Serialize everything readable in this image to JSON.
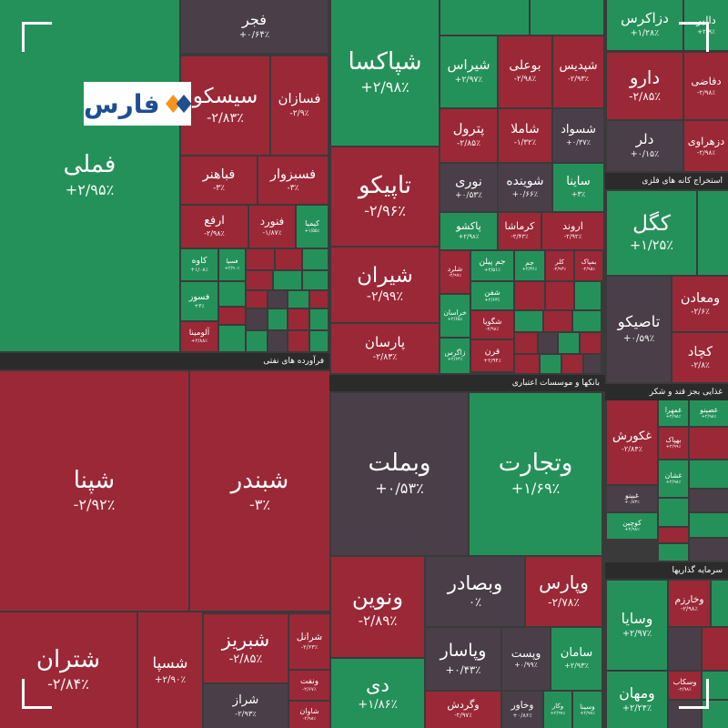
{
  "logo": "فارس",
  "sectors": [
    "فرآورده های نفتی",
    "بانکها و موسسات اعتباری",
    "استخراج کانه های فلزی",
    "غذایی بجز قند و شکر",
    "سرمایه گذاریها"
  ],
  "tiles": [
    {
      "name": "فملی",
      "change": "+۲/۹۵٪"
    },
    {
      "name": "شپنا",
      "change": "-۲/۹۲٪"
    },
    {
      "name": "شبندر",
      "change": "-۳٪"
    },
    {
      "name": "شتران",
      "change": "-۲/۸۴٪"
    },
    {
      "name": "شسپا",
      "change": "+۲/۹۰٪"
    },
    {
      "name": "شبریز",
      "change": "-۲/۸۵٪"
    },
    {
      "name": "شراز",
      "change": "-۲/۹۳٪"
    },
    {
      "name": "شرانل",
      "change": "-۲/۶۳٪"
    },
    {
      "name": "ونفت",
      "change": "-۲/۶۷٪"
    },
    {
      "name": "شاوان",
      "change": "-۲/۹۸٪"
    },
    {
      "name": "فجر",
      "change": "+۰/۶۴٪"
    },
    {
      "name": "سیسکو",
      "change": "-۲/۸۳٪"
    },
    {
      "name": "فسازان",
      "change": "-۲/۹٪"
    },
    {
      "name": "فباهنر",
      "change": "-۳٪"
    },
    {
      "name": "فسبزوار",
      "change": "-۳٪"
    },
    {
      "name": "ارفع",
      "change": "-۲/۹۸٪"
    },
    {
      "name": "فنورد",
      "change": "-۱/۸۷٪"
    },
    {
      "name": "کیمیا",
      "change": "+۱/۵۵٪"
    },
    {
      "name": "کاوه",
      "change": "+۱/۰۸٪"
    },
    {
      "name": "فسپا",
      "change": "+۲/۹۰٪"
    },
    {
      "name": "فسوز",
      "change": "+۳٪"
    },
    {
      "name": "آلومینا",
      "change": "+۲/۸۸٪"
    },
    {
      "name": "شپاکسا",
      "change": "+۲/۹۸٪"
    },
    {
      "name": "تاپیکو",
      "change": "-۲/۹۶٪"
    },
    {
      "name": "شیران",
      "change": "-۲/۹۹٪"
    },
    {
      "name": "پارسان",
      "change": "-۲/۸۳٪"
    },
    {
      "name": "شیراس",
      "change": "+۲/۹۷٪"
    },
    {
      "name": "بوعلی",
      "change": "-۲/۹۸٪"
    },
    {
      "name": "شپدیس",
      "change": "-۲/۹۳٪"
    },
    {
      "name": "پترول",
      "change": "-۲/۸۵٪"
    },
    {
      "name": "شاملا",
      "change": "-۱/۳۲٪"
    },
    {
      "name": "شسواد",
      "change": "+۰/۳۷٪"
    },
    {
      "name": "نوری",
      "change": "+۰/۵۳٪"
    },
    {
      "name": "شوینده",
      "change": "+۰/۶۶٪"
    },
    {
      "name": "ساینا",
      "change": "+۳٪"
    },
    {
      "name": "پاکشو",
      "change": "+۲/۹۸٪"
    },
    {
      "name": "کرماشا",
      "change": "-۲/۴۳٪"
    },
    {
      "name": "اروند",
      "change": "-۲/۹۲٪"
    },
    {
      "name": "شلرد",
      "change": "-۲/۹۷٪"
    },
    {
      "name": "جم پیلن",
      "change": "+۲/۵۱٪"
    },
    {
      "name": "جم",
      "change": "+۲/۳۶٪"
    },
    {
      "name": "کلر",
      "change": "-۲/۹۳٪"
    },
    {
      "name": "بمپاک",
      "change": "-۲/۹۵٪"
    },
    {
      "name": "شفن",
      "change": "+۲/۶۳٪"
    },
    {
      "name": "خراسان",
      "change": "+۲/۶۵٪"
    },
    {
      "name": "شگویا",
      "change": "-۲/۹۸٪"
    },
    {
      "name": "زاگرس",
      "change": "+۲/۶۳٪"
    },
    {
      "name": "قرن",
      "change": "+۲/۹۴٪"
    },
    {
      "name": "وبملت",
      "change": "+۰/۵۳٪"
    },
    {
      "name": "وتجارت",
      "change": "+۱/۶۹٪"
    },
    {
      "name": "ونوین",
      "change": "-۲/۸۹٪"
    },
    {
      "name": "وبصادر",
      "change": "۰٪"
    },
    {
      "name": "وپارس",
      "change": "-۲/۷۸٪"
    },
    {
      "name": "دی",
      "change": "+۱/۸۶٪"
    },
    {
      "name": "وپاسار",
      "change": "+۰/۴۳٪"
    },
    {
      "name": "وپست",
      "change": "+۰/۹۹٪"
    },
    {
      "name": "سامان",
      "change": "+۲/۹۳٪"
    },
    {
      "name": "وگردش",
      "change": "-۲/۹۷٪"
    },
    {
      "name": "وخاور",
      "change": "+۰/۸۶٪"
    },
    {
      "name": "وکار",
      "change": "+۲/۹۹٪"
    },
    {
      "name": "وسینا",
      "change": "+۲/۹۸٪"
    },
    {
      "name": "دزاکرس",
      "change": "+۱/۲۸٪"
    },
    {
      "name": "دالبر",
      "change": "+۲/۹٪"
    },
    {
      "name": "دارو",
      "change": "-۲/۸۵٪"
    },
    {
      "name": "دفاضی",
      "change": "-۲/۹۸٪"
    },
    {
      "name": "دلر",
      "change": "+۰/۱۵٪"
    },
    {
      "name": "دزهراوی",
      "change": "-۲/۹۸٪"
    },
    {
      "name": "کگل",
      "change": "+۱/۲۵٪"
    },
    {
      "name": "تاصیکو",
      "change": "+۰/۵۹٪"
    },
    {
      "name": "ومعادن",
      "change": "-۲/۶٪"
    },
    {
      "name": "کچاد",
      "change": "-۲/۸٪"
    },
    {
      "name": "غکورش",
      "change": "-۲/۸۴٪"
    },
    {
      "name": "غمهرا",
      "change": "+۲/۹۸٪"
    },
    {
      "name": "غصینو",
      "change": "+۲/۹۸٪"
    },
    {
      "name": "بهپاک",
      "change": "+۲/۹۹٪"
    },
    {
      "name": "غشان",
      "change": "+۲/۹۸٪"
    },
    {
      "name": "غبینو",
      "change": "+۰/۸۳٪"
    },
    {
      "name": "کوچین",
      "change": "+۲/۹۸٪"
    },
    {
      "name": "وسایا",
      "change": "+۲/۹۷٪"
    },
    {
      "name": "وخارزم",
      "change": "-۲/۹۸٪"
    },
    {
      "name": "ومهان",
      "change": "+۲/۲۴٪"
    },
    {
      "name": "وسکاب",
      "change": "-۲/۹۸٪"
    }
  ]
}
